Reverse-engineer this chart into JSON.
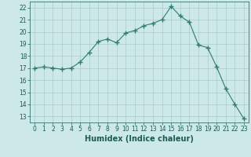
{
  "x": [
    0,
    1,
    2,
    3,
    4,
    5,
    6,
    7,
    8,
    9,
    10,
    11,
    12,
    13,
    14,
    15,
    16,
    17,
    18,
    19,
    20,
    21,
    22,
    23
  ],
  "y": [
    17.0,
    17.1,
    17.0,
    16.9,
    17.0,
    17.5,
    18.3,
    19.2,
    19.4,
    19.1,
    19.9,
    20.1,
    20.5,
    20.7,
    21.0,
    22.1,
    21.3,
    20.8,
    18.9,
    18.7,
    17.1,
    15.3,
    14.0,
    12.8
  ],
  "line_color": "#2e7d6e",
  "marker": "+",
  "marker_size": 4,
  "bg_color": "#cce8e8",
  "grid_color": "#aacccc",
  "xlabel": "Humidex (Indice chaleur)",
  "xlim": [
    -0.5,
    23.5
  ],
  "ylim": [
    12.5,
    22.5
  ],
  "yticks": [
    13,
    14,
    15,
    16,
    17,
    18,
    19,
    20,
    21,
    22
  ],
  "xticks": [
    0,
    1,
    2,
    3,
    4,
    5,
    6,
    7,
    8,
    9,
    10,
    11,
    12,
    13,
    14,
    15,
    16,
    17,
    18,
    19,
    20,
    21,
    22,
    23
  ],
  "tick_fontsize": 5.5,
  "xlabel_fontsize": 7,
  "label_color": "#1a5c52"
}
